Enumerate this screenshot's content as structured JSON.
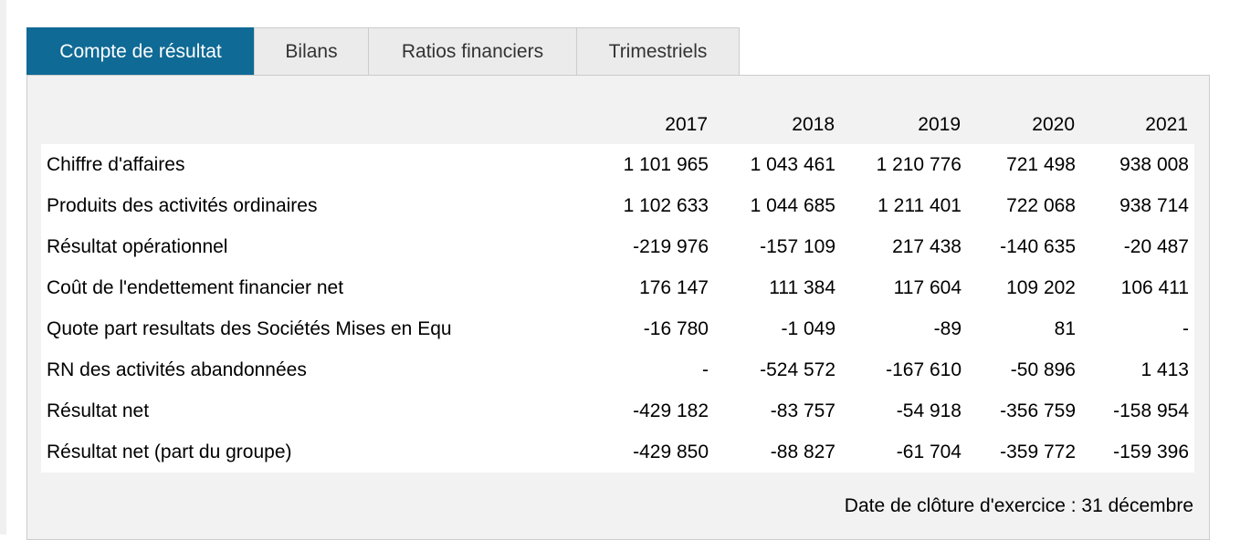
{
  "tabs": [
    {
      "label": "Compte de résultat",
      "active": true
    },
    {
      "label": "Bilans",
      "active": false
    },
    {
      "label": "Ratios financiers",
      "active": false
    },
    {
      "label": "Trimestriels",
      "active": false
    }
  ],
  "table": {
    "years": [
      "2017",
      "2018",
      "2019",
      "2020",
      "2021"
    ],
    "rows": [
      {
        "label": "Chiffre d'affaires",
        "values": [
          "1 101 965",
          "1 043 461",
          "1 210 776",
          "721 498",
          "938 008"
        ]
      },
      {
        "label": "Produits des activités ordinaires",
        "values": [
          "1 102 633",
          "1 044 685",
          "1 211 401",
          "722 068",
          "938 714"
        ]
      },
      {
        "label": "Résultat opérationnel",
        "values": [
          "-219 976",
          "-157 109",
          "217 438",
          "-140 635",
          "-20 487"
        ]
      },
      {
        "label": "Coût de l'endettement financier net",
        "values": [
          "176 147",
          "111 384",
          "117 604",
          "109 202",
          "106 411"
        ]
      },
      {
        "label": "Quote part resultats des Sociétés Mises en Equ",
        "values": [
          "-16 780",
          "-1 049",
          "-89",
          "81",
          "-"
        ]
      },
      {
        "label": "RN des activités abandonnées",
        "values": [
          "-",
          "-524 572",
          "-167 610",
          "-50 896",
          "1 413"
        ]
      },
      {
        "label": "Résultat net",
        "values": [
          "-429 182",
          "-83 757",
          "-54 918",
          "-356 759",
          "-158 954"
        ]
      },
      {
        "label": "Résultat net (part du groupe)",
        "values": [
          "-429 850",
          "-88 827",
          "-61 704",
          "-359 772",
          "-159 396"
        ]
      }
    ]
  },
  "footer": {
    "note": "Date de clôture d'exercice : 31 décembre"
  },
  "colors": {
    "active_tab": "#0f6a95",
    "inactive_tab": "#ebebeb",
    "panel_bg": "#f2f2f2"
  }
}
